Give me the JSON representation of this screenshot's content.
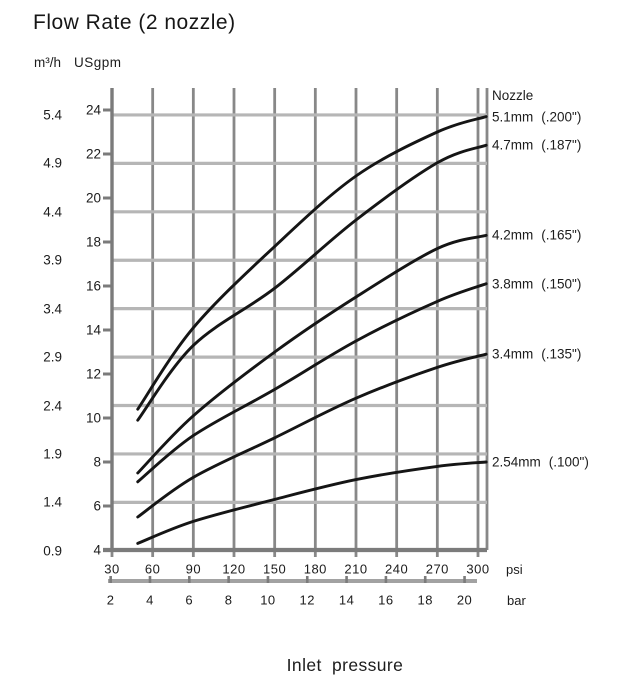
{
  "chart_data": {
    "type": "line",
    "title": "Flow Rate (2 nozzle)",
    "xlabel": "Inlet pressure",
    "legend_header": "Nozzle",
    "x_axis_units": [
      "psi",
      "bar"
    ],
    "y_axis_units": [
      "m³/h",
      "USgpm"
    ],
    "x_range_psi": [
      30,
      300
    ],
    "y_range_usgpm": [
      4,
      24
    ],
    "usgpm_per_m3h": 4.403,
    "psi_per_bar": 14.504,
    "grid": "both",
    "legend_position": "right",
    "x_ticks_psi": [
      30,
      60,
      90,
      120,
      150,
      180,
      210,
      240,
      270,
      300
    ],
    "x_ticks_bar": [
      2,
      4,
      6,
      8,
      10,
      12,
      14,
      16,
      18,
      20
    ],
    "y_ticks_usgpm": [
      24,
      22,
      20,
      18,
      16,
      14,
      12,
      10,
      8,
      6,
      4
    ],
    "y_gridlines_m3h": [
      5.4,
      4.9,
      4.4,
      3.9,
      3.4,
      2.9,
      2.4,
      1.9,
      1.4,
      0.9
    ],
    "series": [
      {
        "name": "5.1mm (.200\")",
        "nozzle_mm": "5.1mm",
        "nozzle_in": "(.200\")",
        "x_psi": [
          49,
          90,
          150,
          210,
          270,
          306
        ],
        "y_usgpm": [
          10.4,
          14.1,
          17.8,
          21.0,
          23.0,
          23.7
        ]
      },
      {
        "name": "4.7mm (.187\")",
        "nozzle_mm": "4.7mm",
        "nozzle_in": "(.187\")",
        "x_psi": [
          49,
          90,
          150,
          210,
          270,
          306
        ],
        "y_usgpm": [
          9.9,
          13.3,
          15.9,
          19.0,
          21.6,
          22.4
        ]
      },
      {
        "name": "4.2mm (.165\")",
        "nozzle_mm": "4.2mm",
        "nozzle_in": "(.165\")",
        "x_psi": [
          49,
          90,
          150,
          210,
          270,
          306
        ],
        "y_usgpm": [
          7.5,
          10.1,
          13.0,
          15.5,
          17.7,
          18.3
        ]
      },
      {
        "name": "3.8mm (.150\")",
        "nozzle_mm": "3.8mm",
        "nozzle_in": "(.150\")",
        "x_psi": [
          49,
          90,
          150,
          210,
          270,
          306
        ],
        "y_usgpm": [
          7.1,
          9.2,
          11.3,
          13.5,
          15.3,
          16.1
        ]
      },
      {
        "name": "3.4mm (.135\")",
        "nozzle_mm": "3.4mm",
        "nozzle_in": "(.135\")",
        "x_psi": [
          49,
          90,
          150,
          210,
          270,
          306
        ],
        "y_usgpm": [
          5.5,
          7.3,
          9.1,
          10.9,
          12.3,
          12.9
        ]
      },
      {
        "name": "2.54mm (.100\")",
        "nozzle_mm": "2.54mm",
        "nozzle_in": "(.100\")",
        "x_psi": [
          49,
          90,
          150,
          210,
          270,
          306
        ],
        "y_usgpm": [
          4.3,
          5.3,
          6.3,
          7.2,
          7.8,
          8.0
        ]
      }
    ],
    "colors": {
      "curve": "#151515",
      "grid_vertical": "#888888",
      "grid_horizontal": "#b6b6b6",
      "axis": "#7b7b7b",
      "separator": "#a2a2a2",
      "text": "#1c1c1c"
    }
  }
}
